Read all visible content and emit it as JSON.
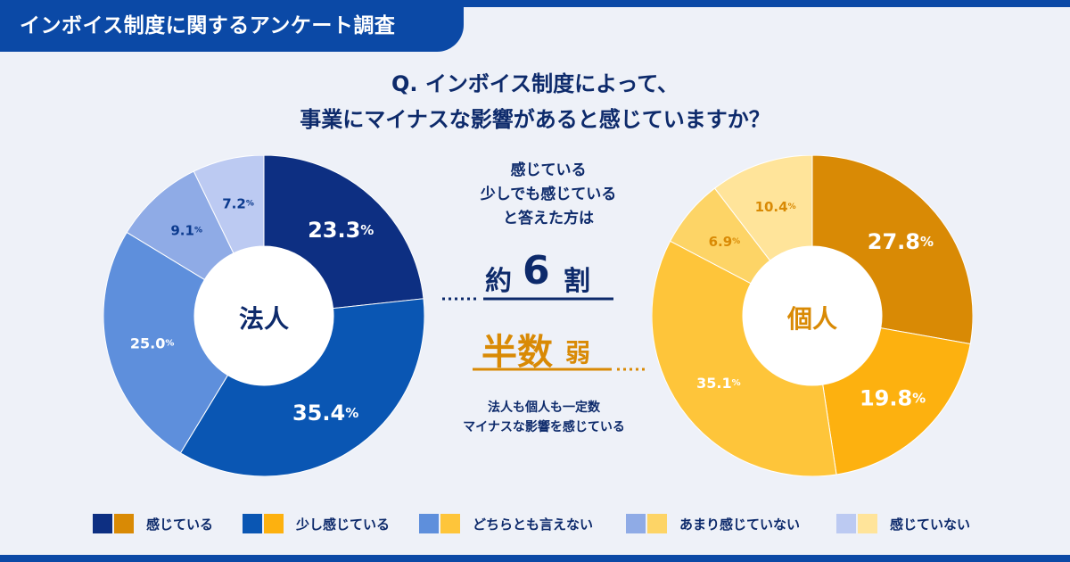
{
  "header": {
    "title": "インボイス制度に関するアンケート調査"
  },
  "question": {
    "line1": "Q. インボイス制度によって、",
    "line2": "事業にマイナスな影響があると感じていますか？"
  },
  "center": {
    "lead": [
      "感じている",
      "少しでも感じている",
      "と答えた方は"
    ],
    "corp_result": {
      "pre": "約",
      "num": "6",
      "post": "割"
    },
    "indiv_result": {
      "main": "半数",
      "suffix": "弱"
    },
    "note": [
      "法人も個人も一定数",
      "マイナスな影響を感じている"
    ]
  },
  "colors": {
    "corp": [
      "#0d2f82",
      "#0a56b3",
      "#5e8fdc",
      "#8fabe6",
      "#bccaf2"
    ],
    "indiv": [
      "#d98a05",
      "#fdb10f",
      "#fec53a",
      "#fdd466",
      "#ffe49a"
    ],
    "corp_label": "#0b3a8e",
    "indiv_label": "#d98a05"
  },
  "chart_data": [
    {
      "type": "pie",
      "title": "法人",
      "categories": [
        "感じている",
        "少し感じている",
        "どちらとも言えない",
        "あまり感じていない",
        "感じていない"
      ],
      "values": [
        23.3,
        35.4,
        25.0,
        9.1,
        7.2
      ],
      "labels": [
        "23.3",
        "35.4",
        "25.0",
        "9.1",
        "7.2"
      ],
      "unit": "%"
    },
    {
      "type": "pie",
      "title": "個人",
      "categories": [
        "感じている",
        "少し感じている",
        "どちらとも言えない",
        "あまり感じていない",
        "感じていない"
      ],
      "values": [
        27.8,
        19.8,
        35.1,
        6.9,
        10.4
      ],
      "labels": [
        "27.8",
        "19.8",
        "35.1",
        "6.9",
        "10.4"
      ],
      "unit": "%"
    }
  ],
  "legend": [
    {
      "label": "感じている"
    },
    {
      "label": "少し感じている"
    },
    {
      "label": "どちらとも言えない"
    },
    {
      "label": "あまり感じていない"
    },
    {
      "label": "感じていない"
    }
  ]
}
